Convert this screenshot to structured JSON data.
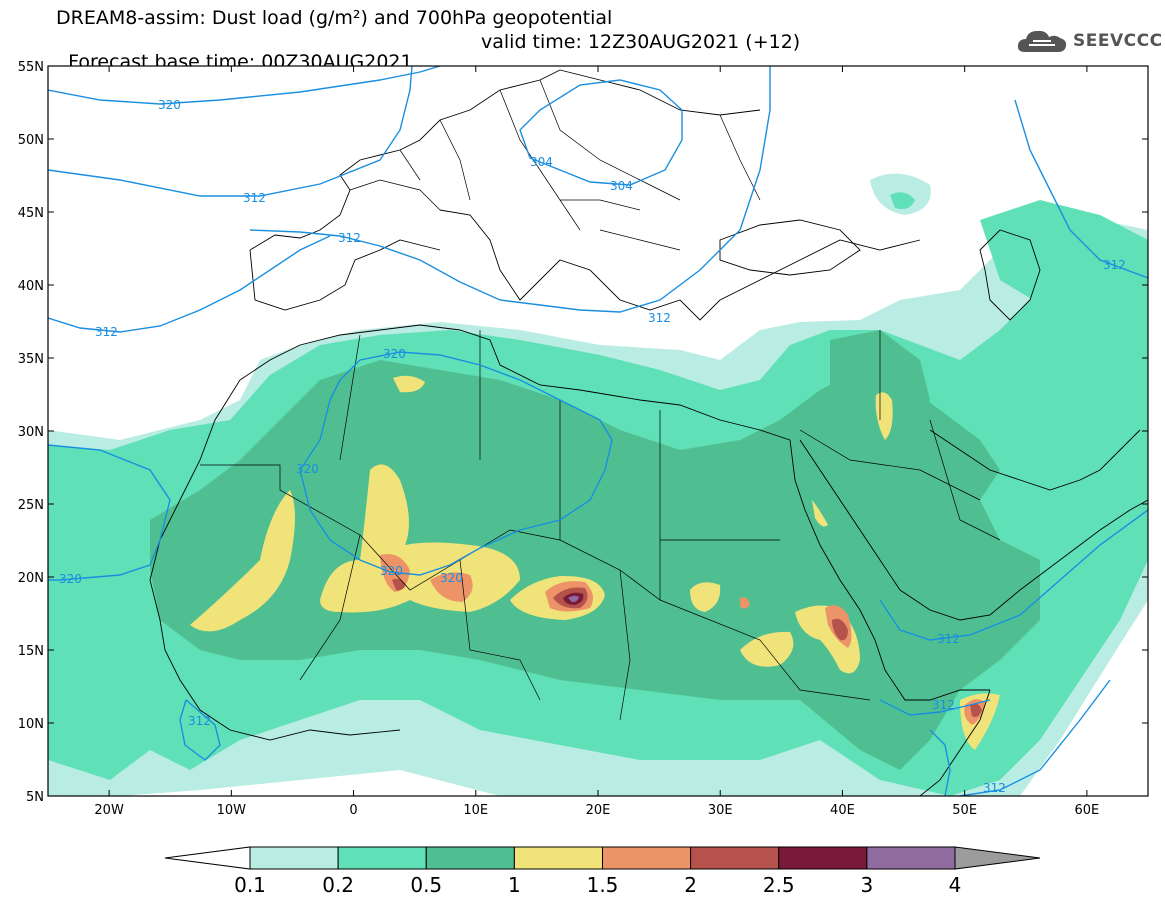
{
  "header": {
    "title_line1": "DREAM8-assim: Dust load (g/m²) and 700hPa geopotential",
    "title_line2_base": "Forecast base time: 00Z30AUG2021",
    "title_line2_valid": "valid time: 12Z30AUG2021 (+12)"
  },
  "logo": {
    "text": "SEEVCCC",
    "icon": "cloud-logo-icon"
  },
  "axes": {
    "lat_labels": [
      "55N",
      "50N",
      "45N",
      "40N",
      "35N",
      "30N",
      "25N",
      "20N",
      "15N",
      "10N",
      "5N"
    ],
    "lon_labels": [
      "20W",
      "10W",
      "0",
      "10E",
      "20E",
      "30E",
      "40E",
      "50E",
      "60E"
    ]
  },
  "contour_labels": [
    "320",
    "312",
    "312",
    "312",
    "304",
    "304",
    "312",
    "320",
    "320",
    "320",
    "320",
    "320",
    "312",
    "312",
    "312",
    "312",
    "312"
  ],
  "colorbar": {
    "ticks": [
      "0.1",
      "0.2",
      "0.5",
      "1",
      "1.5",
      "2",
      "2.5",
      "3",
      "4"
    ],
    "colors": [
      "#ffffff",
      "#b9ece3",
      "#5fe0b7",
      "#4fbf92",
      "#f0e37a",
      "#ec9468",
      "#b5524b",
      "#7a1a3a",
      "#8f6ba0",
      "#9c9c9c"
    ]
  },
  "colors": {
    "contour": "#1a8fe0",
    "dust_0_1": "#b9ece3",
    "dust_0_2": "#5fe0b7",
    "dust_0_5": "#4fbf92",
    "dust_1": "#f0e37a",
    "dust_1_5": "#ec9468",
    "dust_2": "#b5524b",
    "dust_2_5": "#7a1a3a",
    "dust_3": "#8f6ba0"
  }
}
